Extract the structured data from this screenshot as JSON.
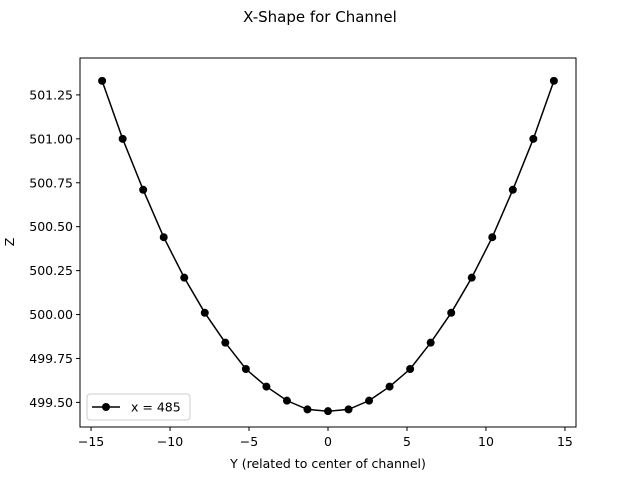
{
  "chart_data": {
    "type": "line",
    "title": "X-Shape for Channel",
    "xlabel": "Y (related to center of channel)",
    "ylabel": "Z",
    "xlim": [
      -15.7,
      15.7
    ],
    "ylim": [
      499.36,
      501.46
    ],
    "xticks": [
      -15,
      -10,
      -5,
      0,
      5,
      10,
      15
    ],
    "xtick_labels": [
      "−15",
      "−10",
      "−5",
      "0",
      "5",
      "10",
      "15"
    ],
    "yticks": [
      499.5,
      499.75,
      500.0,
      500.25,
      500.5,
      500.75,
      501.0,
      501.25
    ],
    "ytick_labels": [
      "499.50",
      "499.75",
      "500.00",
      "500.25",
      "500.50",
      "500.75",
      "501.00",
      "501.25"
    ],
    "grid": false,
    "legend_position": "lower-left",
    "series": [
      {
        "name": "x = 485",
        "color": "#000000",
        "marker": "circle",
        "x": [
          -14.3,
          -13.0,
          -11.7,
          -10.4,
          -9.1,
          -7.8,
          -6.5,
          -5.2,
          -3.9,
          -2.6,
          -1.3,
          0.0,
          1.3,
          2.6,
          3.9,
          5.2,
          6.5,
          7.8,
          9.1,
          10.4,
          11.7,
          13.0,
          14.3
        ],
        "y": [
          501.33,
          501.0,
          500.71,
          500.44,
          500.21,
          500.01,
          499.84,
          499.69,
          499.59,
          499.51,
          499.46,
          499.45,
          499.46,
          499.51,
          499.59,
          499.69,
          499.84,
          500.01,
          500.21,
          500.44,
          500.71,
          501.0,
          501.33
        ]
      }
    ]
  }
}
